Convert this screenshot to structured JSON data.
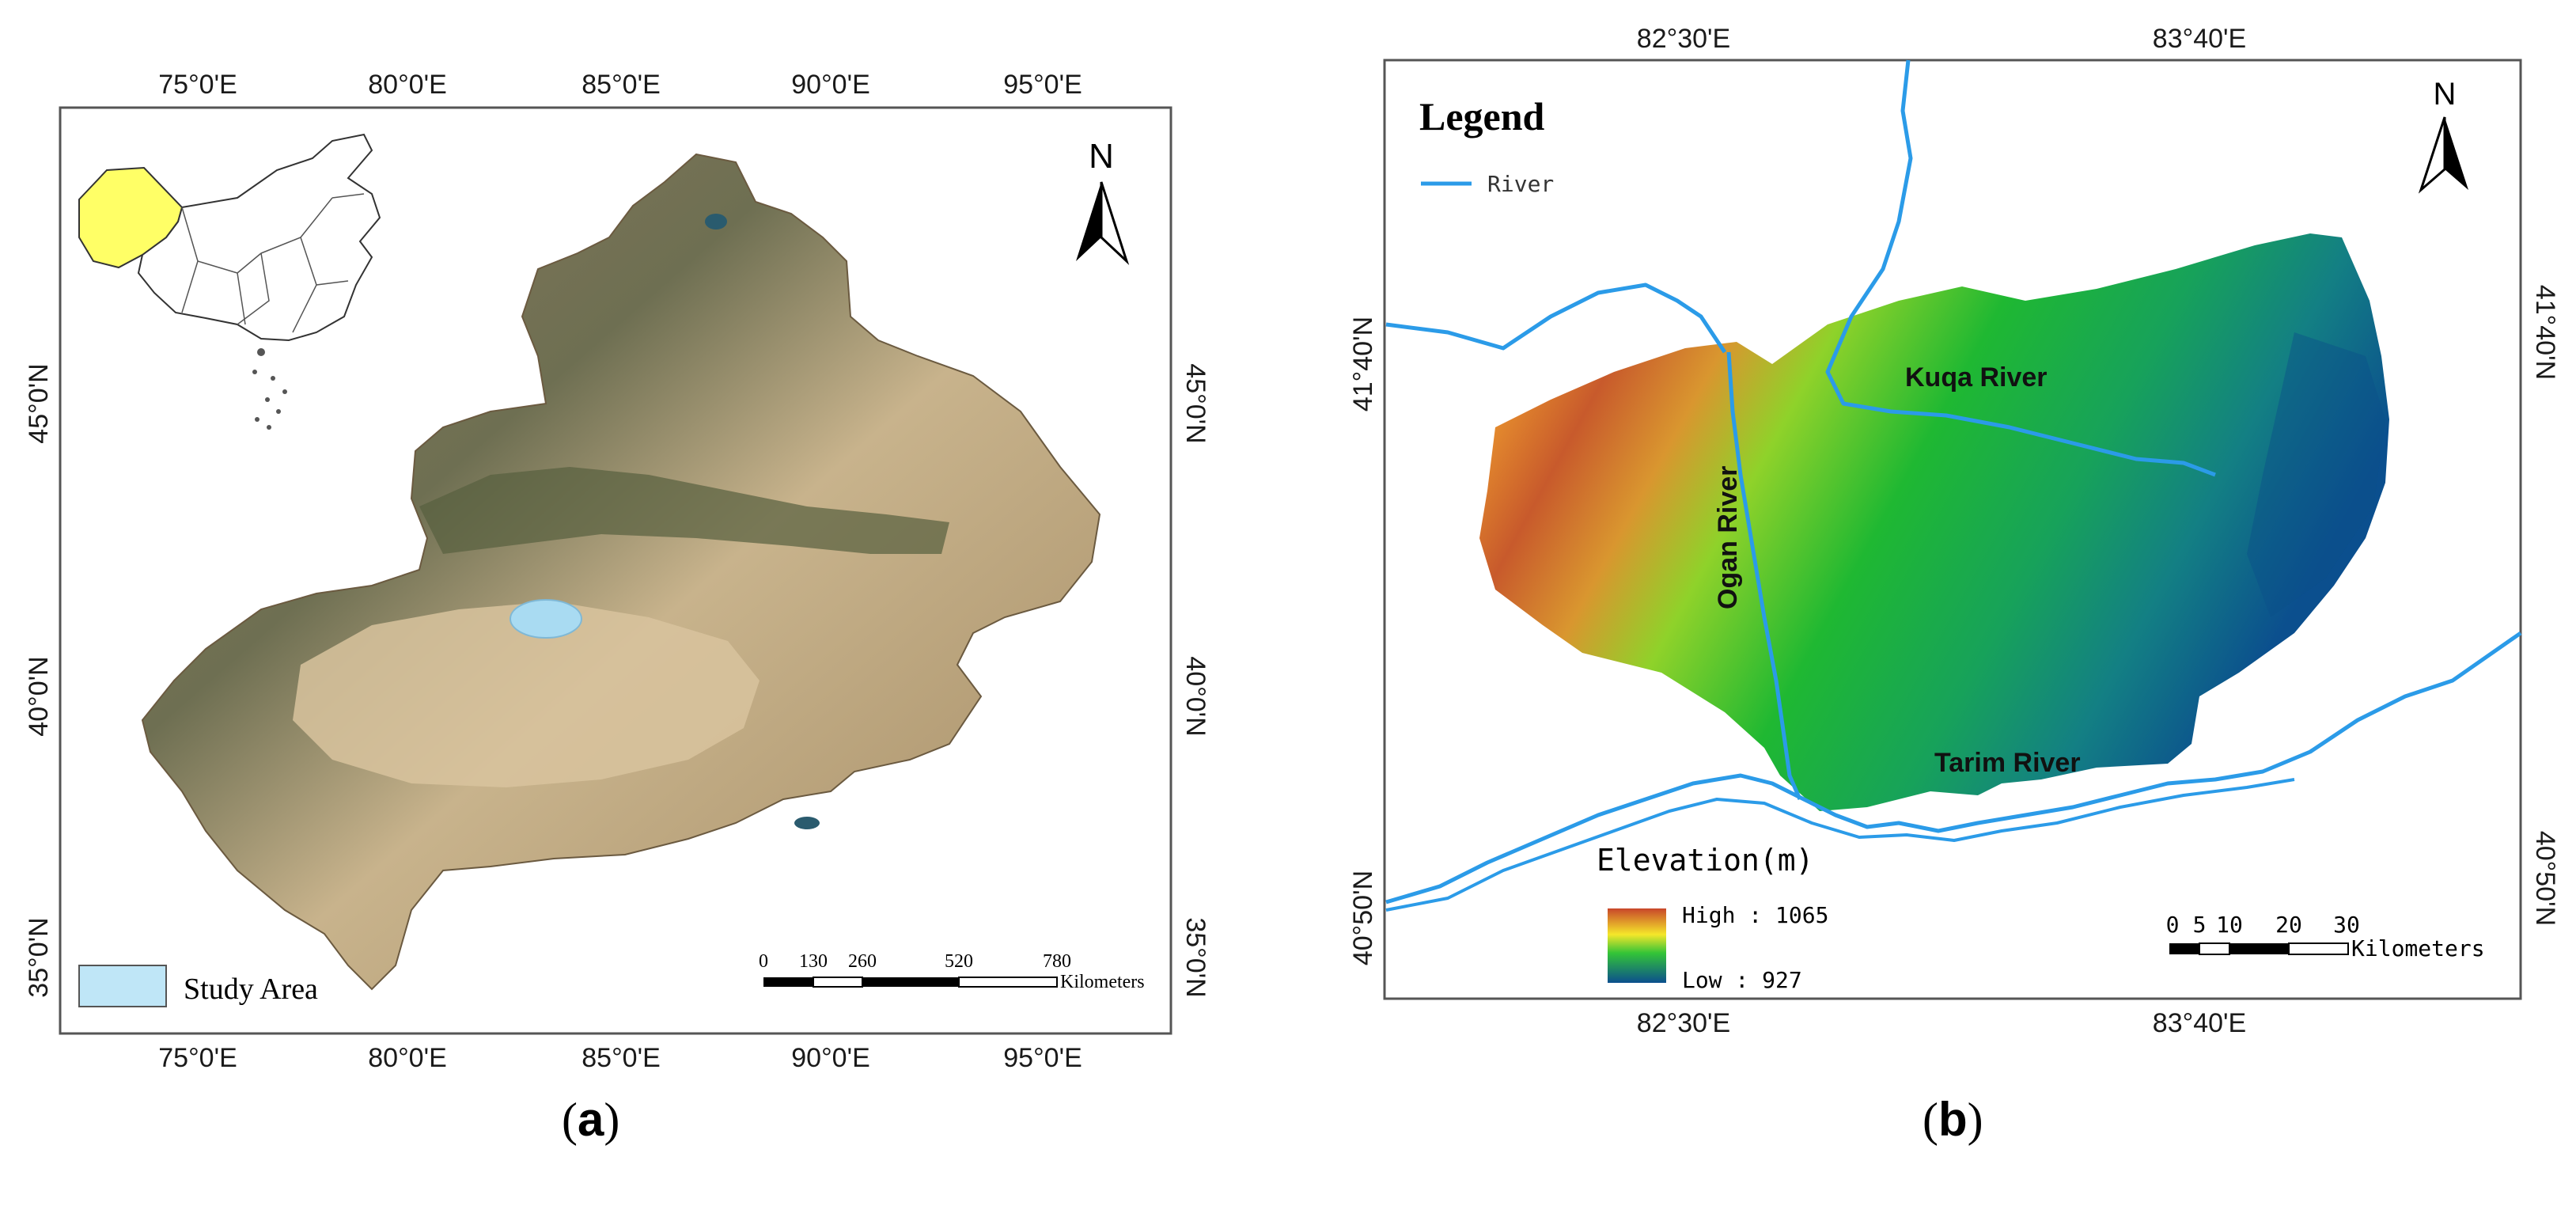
{
  "panel_a": {
    "caption_open": "(",
    "caption_letter": "a",
    "caption_close": ")",
    "lon_labels": [
      "75°0'E",
      "80°0'E",
      "85°0'E",
      "90°0'E",
      "95°0'E"
    ],
    "lat_labels": [
      "45°0'N",
      "40°0'N",
      "35°0'N"
    ],
    "north_label": "N",
    "legend_label": "Study Area",
    "scale_ticks": [
      "0",
      "130",
      "260",
      "520",
      "780"
    ],
    "scale_unit": "Kilometers",
    "colors": {
      "inset_highlight": "#ffff66",
      "study_area": "#bfe6f7",
      "satellite_base": "#b59e78"
    }
  },
  "panel_b": {
    "caption_open": "(",
    "caption_letter": "b",
    "caption_close": ")",
    "lon_labels": [
      "82°30'E",
      "83°40'E"
    ],
    "lat_labels": [
      "41°40'N",
      "40°50'N"
    ],
    "north_label": "N",
    "legend_title": "Legend",
    "legend_river": "River",
    "river_labels": {
      "kuqa": "Kuqa River",
      "ogan": "Ogan River",
      "tarim": "Tarim River"
    },
    "elevation_title": "Elevation(m)",
    "elevation_high": "High : 1065",
    "elevation_low": "Low : 927",
    "scale_ticks": [
      "0",
      "5",
      "10",
      "20",
      "30"
    ],
    "scale_unit": "Kilometers",
    "colors": {
      "river": "#2b9be8",
      "high": "#c8462a",
      "mid": "#f5e72a",
      "low": "#0b5a8e"
    }
  }
}
